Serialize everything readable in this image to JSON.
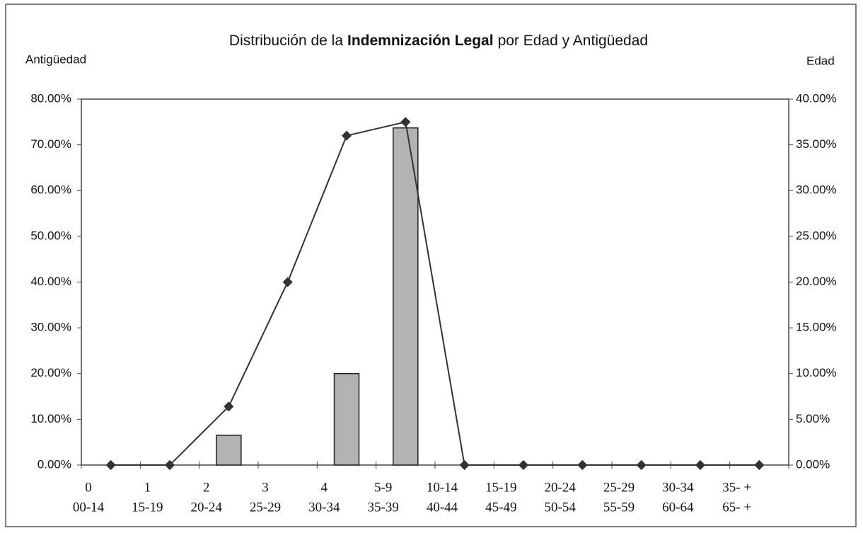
{
  "chart_data": {
    "type": "bar_line",
    "title": [
      {
        "text": "Distribución de la",
        "bold": false
      },
      {
        "text": "Indemnización Legal",
        "bold": true
      },
      {
        "text": "por Edad y Antigüedad",
        "bold": false
      }
    ],
    "ylabel": "Antigüedad",
    "y2label": "Edad",
    "categories": [
      [
        "0",
        "00-14"
      ],
      [
        "1",
        "15-19"
      ],
      [
        "2",
        "20-24"
      ],
      [
        "3",
        "25-29"
      ],
      [
        "4",
        "30-34"
      ],
      [
        "5-9",
        "35-39"
      ],
      [
        "10-14",
        "40-44"
      ],
      [
        "15-19",
        "45-49"
      ],
      [
        "20-24",
        "50-54"
      ],
      [
        "25-29",
        "55-59"
      ],
      [
        "30-34",
        "60-64"
      ],
      [
        "35- +",
        "65- +"
      ]
    ],
    "series": [
      {
        "type": "bar",
        "color": "#b3b3b3",
        "values": [
          0,
          0,
          6.5,
          0,
          20,
          73.7,
          0,
          0,
          0,
          0,
          0,
          0
        ]
      },
      {
        "type": "line",
        "axis": "y2",
        "color": "#333333",
        "values": [
          0,
          0,
          6.4,
          20,
          36,
          37.5,
          0,
          0,
          0,
          0,
          0,
          0
        ]
      }
    ],
    "ylim": [
      0,
      80
    ],
    "yticks": [
      {
        "value": 0,
        "label": "0.00%"
      },
      {
        "value": 10,
        "label": "10.00%"
      },
      {
        "value": 20,
        "label": "20.00%"
      },
      {
        "value": 30,
        "label": "30.00%"
      },
      {
        "value": 40,
        "label": "40.00%"
      },
      {
        "value": 50,
        "label": "50.00%"
      },
      {
        "value": 60,
        "label": "60.00%"
      },
      {
        "value": 70,
        "label": "70.00%"
      },
      {
        "value": 80,
        "label": "80.00%"
      }
    ],
    "y2lim": [
      0,
      40
    ],
    "y2ticks": [
      {
        "value": 0,
        "label": "0.00%"
      },
      {
        "value": 5,
        "label": "5.00%"
      },
      {
        "value": 10,
        "label": "10.00%"
      },
      {
        "value": 15,
        "label": "15.00%"
      },
      {
        "value": 20,
        "label": "20.00%"
      },
      {
        "value": 25,
        "label": "25.00%"
      },
      {
        "value": 30,
        "label": "30.00%"
      },
      {
        "value": 35,
        "label": "35.00%"
      },
      {
        "value": 40,
        "label": "40.00%"
      }
    ],
    "grid": false
  }
}
